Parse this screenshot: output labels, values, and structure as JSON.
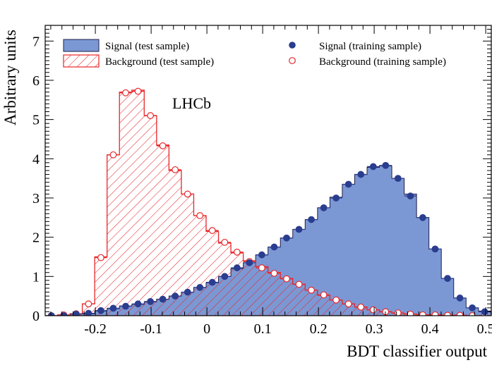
{
  "chart_data": {
    "type": "histogram",
    "xlabel": "BDT classifier output",
    "ylabel": "Arbitrary units",
    "xlim": [
      -0.29,
      0.51
    ],
    "ylim": [
      0,
      7.4
    ],
    "xticks": [
      -0.2,
      -0.1,
      0,
      0.1,
      0.2,
      0.3,
      0.4,
      0.5
    ],
    "xtick_labels": [
      "-0.2",
      "-0.1",
      "0",
      "0.1",
      "0.2",
      "0.3",
      "0.4",
      "0.5"
    ],
    "yticks": [
      0,
      1,
      2,
      3,
      4,
      5,
      6,
      7
    ],
    "ytick_labels": [
      "0",
      "1",
      "2",
      "3",
      "4",
      "5",
      "6",
      "7"
    ],
    "bin_edges_start": -0.29,
    "bin_width": 0.0222,
    "annotation": "LHCb",
    "legend_position": "top",
    "series": [
      {
        "name": "Signal (test sample)",
        "kind": "filled-histogram",
        "color": "#7b98d4",
        "edge_color": "#1f1f4a",
        "values": [
          0,
          0,
          0.05,
          0.05,
          0.12,
          0.18,
          0.25,
          0.29,
          0.35,
          0.42,
          0.5,
          0.6,
          0.72,
          0.84,
          1.0,
          1.2,
          1.35,
          1.55,
          1.75,
          1.98,
          2.2,
          2.45,
          2.75,
          3.02,
          3.35,
          3.6,
          3.78,
          3.82,
          3.5,
          3.1,
          2.5,
          1.7,
          0.95,
          0.45,
          0.2,
          0.12,
          0.05,
          0.02
        ]
      },
      {
        "name": "Background (test sample)",
        "kind": "hatched-histogram",
        "color": "#e8262a",
        "values": [
          0,
          0.02,
          0.05,
          0.3,
          1.5,
          4.1,
          5.7,
          5.75,
          5.1,
          4.35,
          3.7,
          3.1,
          2.55,
          2.15,
          1.85,
          1.6,
          1.4,
          1.25,
          1.1,
          0.95,
          0.8,
          0.65,
          0.52,
          0.4,
          0.3,
          0.22,
          0.15,
          0.1,
          0.06,
          0.04,
          0.02,
          0.02,
          0.01,
          0.01,
          0.0,
          0.0,
          0.0,
          0.0
        ]
      },
      {
        "name": "Signal (training sample)",
        "kind": "filled-markers",
        "color": "#2b3d8f",
        "values": [
          0,
          0,
          0.04,
          0.06,
          0.13,
          0.19,
          0.24,
          0.3,
          0.36,
          0.42,
          0.5,
          0.6,
          0.72,
          0.85,
          1.0,
          1.22,
          1.35,
          1.55,
          1.75,
          1.98,
          2.2,
          2.45,
          2.75,
          3.0,
          3.35,
          3.6,
          3.8,
          3.83,
          3.5,
          3.05,
          2.5,
          1.7,
          0.95,
          0.45,
          0.2,
          0.1,
          0.05,
          0.02
        ]
      },
      {
        "name": "Background (training sample)",
        "kind": "open-markers",
        "color": "#e8262a",
        "values": [
          0.0,
          0.02,
          0.05,
          0.3,
          1.48,
          4.1,
          5.68,
          5.72,
          5.1,
          4.33,
          3.72,
          3.1,
          2.55,
          2.17,
          1.87,
          1.62,
          1.38,
          1.22,
          1.08,
          0.94,
          0.8,
          0.65,
          0.53,
          0.4,
          0.3,
          0.22,
          0.15,
          0.1,
          0.07,
          0.04,
          0.02,
          0.02,
          0.01,
          0.01,
          0.0,
          0.0,
          0.0,
          0.0
        ]
      }
    ]
  }
}
